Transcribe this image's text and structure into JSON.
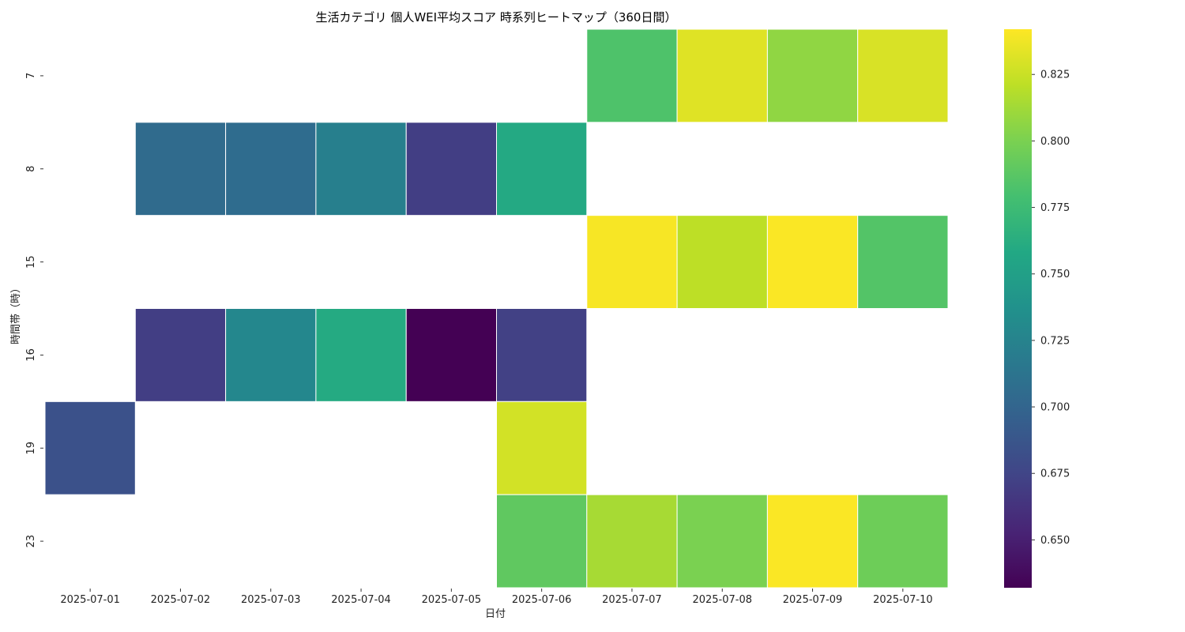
{
  "chart_data": {
    "type": "heatmap",
    "title": "生活カテゴリ 個人WEI平均スコア 時系列ヒートマップ（360日間）",
    "xlabel": "日付",
    "ylabel": "時間帯（時）",
    "x_categories": [
      "2025-07-01",
      "2025-07-02",
      "2025-07-03",
      "2025-07-04",
      "2025-07-05",
      "2025-07-06",
      "2025-07-07",
      "2025-07-08",
      "2025-07-09",
      "2025-07-10"
    ],
    "y_categories": [
      "7",
      "8",
      "15",
      "16",
      "19",
      "23"
    ],
    "colormap": "viridis",
    "colorbar": {
      "vmin": 0.632,
      "vmax": 0.842,
      "ticks": [
        0.65,
        0.675,
        0.7,
        0.725,
        0.75,
        0.775,
        0.8,
        0.825
      ],
      "tick_labels": [
        "0.650",
        "0.675",
        "0.700",
        "0.725",
        "0.750",
        "0.775",
        "0.800",
        "0.825"
      ]
    },
    "values": [
      [
        null,
        null,
        null,
        null,
        null,
        null,
        0.783,
        0.832,
        0.807,
        0.83
      ],
      [
        null,
        0.705,
        0.706,
        0.722,
        0.67,
        0.759,
        null,
        null,
        null,
        null
      ],
      [
        null,
        null,
        null,
        null,
        null,
        null,
        0.84,
        0.821,
        0.841,
        0.785
      ],
      [
        null,
        0.67,
        0.729,
        0.76,
        0.632,
        0.672,
        null,
        null,
        null,
        null
      ],
      [
        0.684,
        null,
        null,
        null,
        null,
        0.828,
        null,
        null,
        null,
        null
      ],
      [
        null,
        null,
        null,
        null,
        null,
        0.79,
        0.814,
        0.8,
        0.841,
        0.795
      ]
    ]
  }
}
